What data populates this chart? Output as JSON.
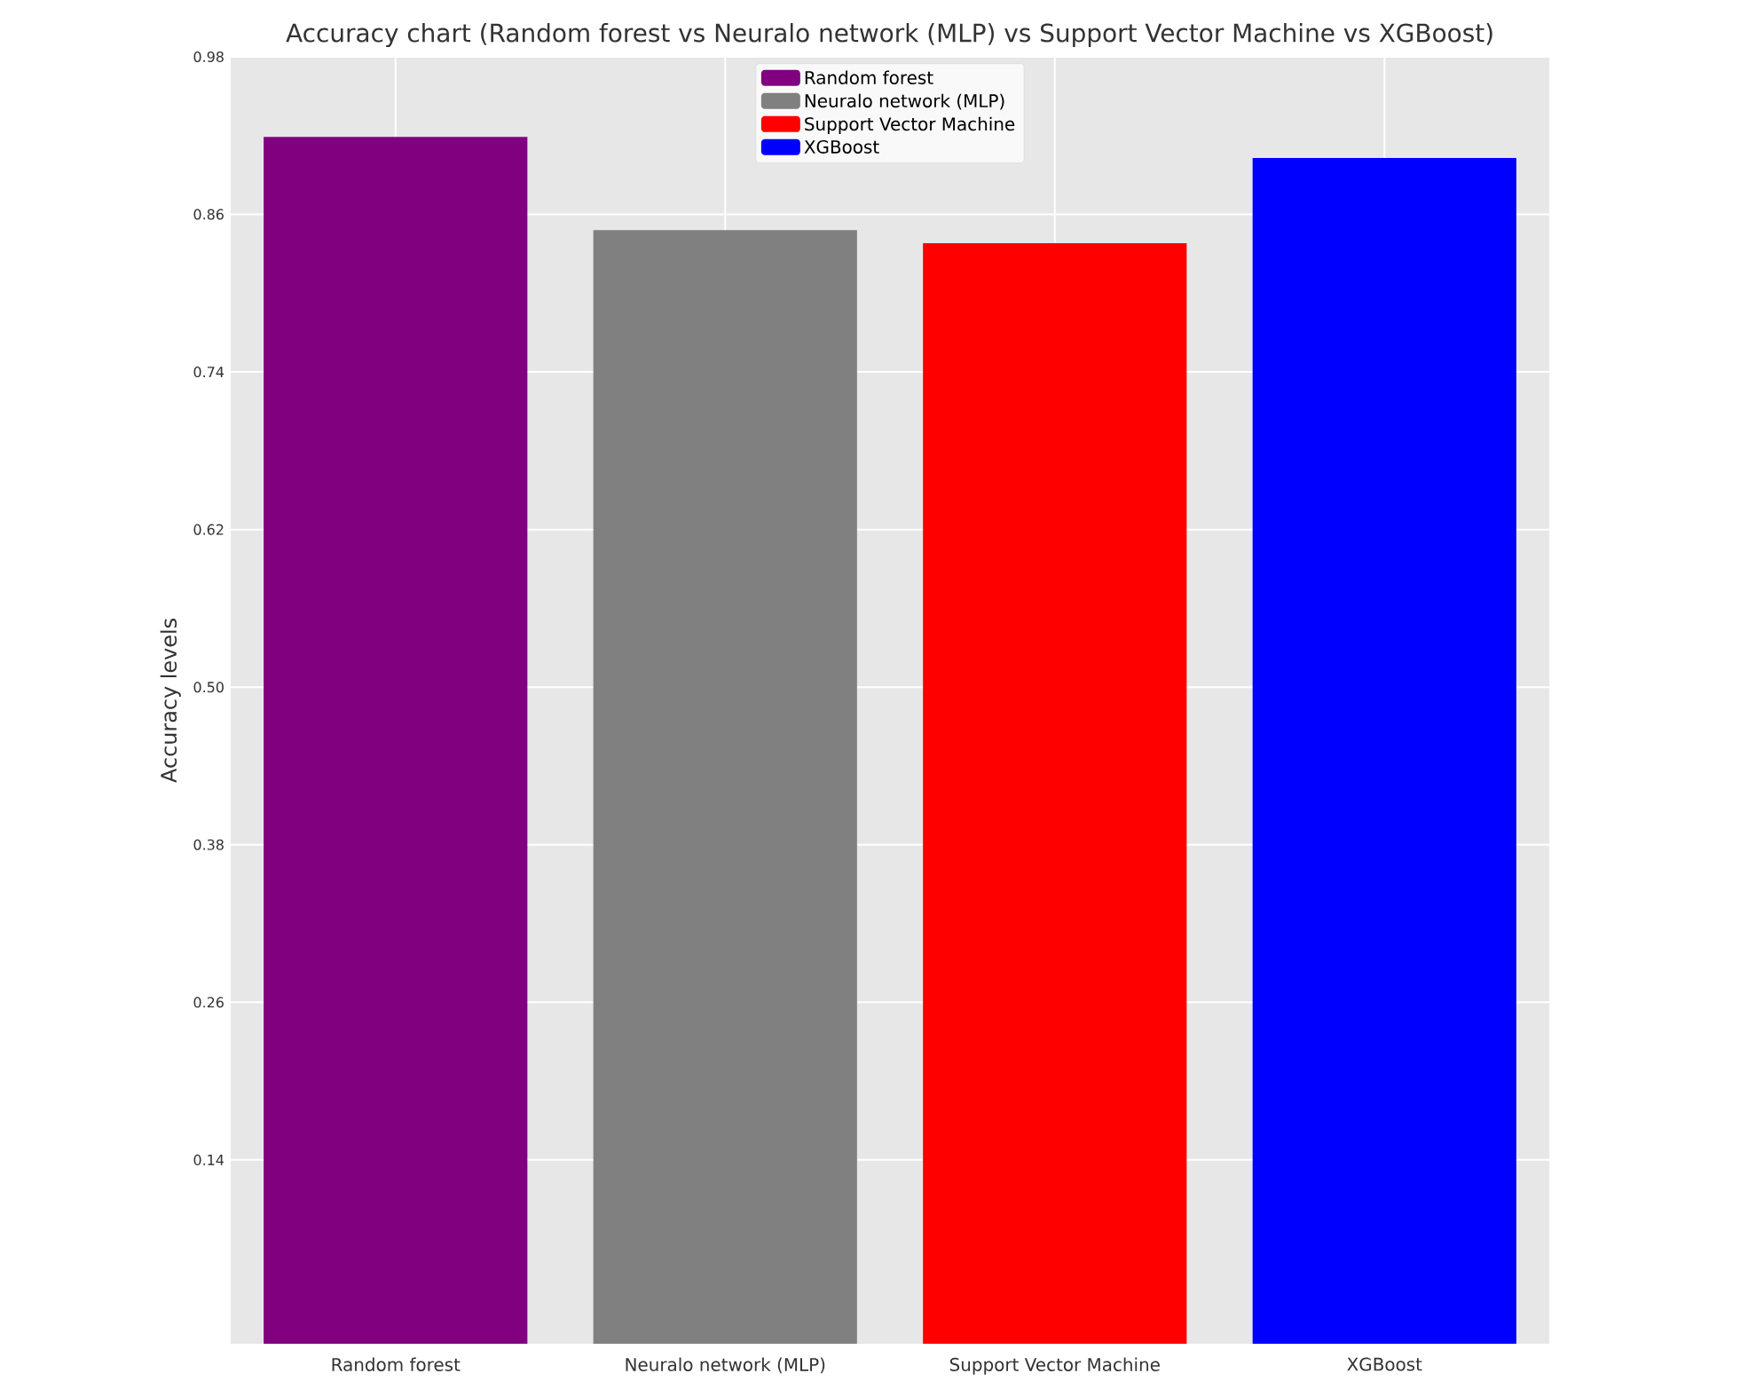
{
  "chart_data": {
    "type": "bar",
    "title": "Accuracy chart (Random forest vs Neuralo network (MLP) vs Support Vector Machine vs XGBoost)",
    "ylabel": "Accuracy levels",
    "categories": [
      "Random forest",
      "Neuralo network (MLP)",
      "Support Vector Machine",
      "XGBoost"
    ],
    "series": [
      {
        "name": "Random forest",
        "color": "#800080",
        "values": [
          0.919,
          null,
          null,
          null
        ]
      },
      {
        "name": "Neuralo network (MLP)",
        "color": "#808080",
        "values": [
          null,
          0.848,
          null,
          null
        ]
      },
      {
        "name": "Support Vector Machine",
        "color": "#ff0000",
        "values": [
          null,
          null,
          0.838,
          null
        ]
      },
      {
        "name": "XGBoost",
        "color": "#0000ff",
        "values": [
          null,
          null,
          null,
          0.903
        ]
      }
    ],
    "ylim": [
      0,
      0.98
    ],
    "yticks": [
      0.14,
      0.26,
      0.38,
      {
        "value": 0.5,
        "label": "0.50"
      },
      0.62,
      0.74,
      0.86,
      0.98
    ],
    "grid": true,
    "legend": "top"
  }
}
